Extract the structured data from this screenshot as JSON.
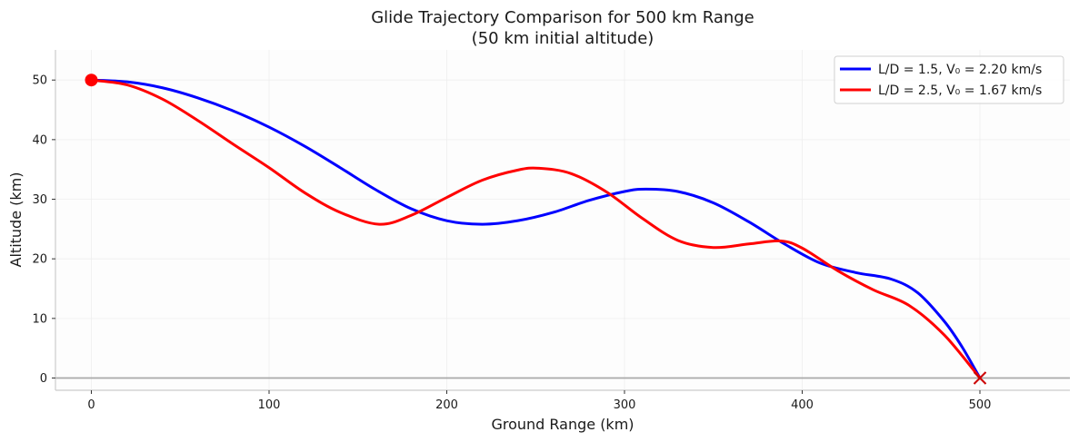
{
  "chart_data": {
    "type": "line",
    "title_line1": "Glide Trajectory Comparison for 500 km Range",
    "title_line2": "(50 km initial altitude)",
    "xlabel": "Ground Range (km)",
    "ylabel": "Altitude (km)",
    "xlim": [
      -20,
      550
    ],
    "ylim": [
      -2,
      55
    ],
    "xticks": [
      0,
      100,
      200,
      300,
      400,
      500
    ],
    "yticks": [
      0,
      10,
      20,
      30,
      40,
      50
    ],
    "grid": true,
    "legend_position": "top-right",
    "reference_line_y": 0,
    "start_marker": {
      "x": 0,
      "y": 50,
      "color": "#ff0000"
    },
    "end_marker": {
      "x": 500,
      "y": 0,
      "color": "#cc0000"
    },
    "series": [
      {
        "name": "L/D = 1.5, V₀ = 2.20 km/s",
        "color": "#0000ff",
        "x": [
          0,
          20,
          40,
          60,
          80,
          100,
          120,
          140,
          160,
          180,
          200,
          220,
          240,
          260,
          280,
          300,
          312,
          330,
          350,
          370,
          390,
          410,
          430,
          450,
          465,
          480,
          490,
          500
        ],
        "y": [
          50,
          49.7,
          48.7,
          47,
          44.8,
          42.1,
          38.9,
          35.3,
          31.6,
          28.4,
          26.4,
          25.8,
          26.4,
          27.8,
          29.8,
          31.3,
          31.7,
          31.3,
          29.4,
          26.2,
          22.5,
          19.3,
          17.7,
          16.6,
          14.3,
          9.5,
          5.2,
          0
        ]
      },
      {
        "name": "L/D = 2.5, V₀ = 1.67 km/s",
        "color": "#ff0000",
        "x": [
          0,
          20,
          40,
          60,
          80,
          100,
          120,
          140,
          162,
          180,
          200,
          220,
          240,
          252,
          270,
          290,
          310,
          330,
          350,
          370,
          388,
          400,
          420,
          440,
          460,
          480,
          500
        ],
        "y": [
          50,
          49.2,
          46.8,
          43.2,
          39.2,
          35.3,
          31.1,
          27.8,
          25.8,
          27.3,
          30.3,
          33.2,
          34.9,
          35.2,
          34.3,
          31.2,
          26.8,
          23.1,
          21.9,
          22.5,
          23.0,
          21.8,
          18.0,
          14.8,
          12.2,
          7.2,
          0
        ]
      }
    ]
  }
}
